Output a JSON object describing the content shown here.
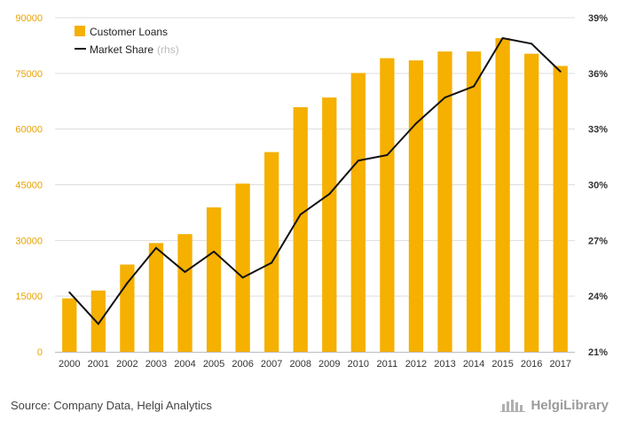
{
  "colors": {
    "bar": "#F5B000",
    "line": "#111111",
    "grid": "#dddddd",
    "left_tick": "#e8a200"
  },
  "chart_data": {
    "type": "bar",
    "categories": [
      "2000",
      "2001",
      "2002",
      "2003",
      "2004",
      "2005",
      "2006",
      "2007",
      "2008",
      "2009",
      "2010",
      "2011",
      "2012",
      "2013",
      "2014",
      "2015",
      "2016",
      "2017"
    ],
    "series": [
      {
        "name": "Customer Loans",
        "type": "bar",
        "axis": "left",
        "values": [
          14400,
          16500,
          23500,
          29300,
          31700,
          38900,
          45300,
          53800,
          65900,
          68500,
          75100,
          79100,
          78500,
          80900,
          80900,
          84500,
          80300,
          77000
        ]
      },
      {
        "name": "Market Share",
        "name_suffix": "(rhs)",
        "type": "line",
        "axis": "right",
        "values": [
          24.2,
          22.5,
          24.7,
          26.6,
          25.3,
          26.4,
          25.0,
          25.8,
          28.4,
          29.5,
          31.3,
          31.6,
          33.3,
          34.7,
          35.3,
          37.9,
          37.6,
          36.1
        ]
      }
    ],
    "left_axis": {
      "min": 0,
      "max": 90000,
      "ticks": [
        0,
        15000,
        30000,
        45000,
        60000,
        75000,
        90000
      ]
    },
    "right_axis": {
      "min": 21,
      "max": 39,
      "ticks": [
        "21%",
        "24%",
        "27%",
        "30%",
        "33%",
        "36%",
        "39%"
      ]
    },
    "grid": true,
    "legend": "top-left"
  },
  "footer": {
    "source": "Source: Company Data, Helgi Analytics",
    "brand": "HelgiLibrary"
  }
}
